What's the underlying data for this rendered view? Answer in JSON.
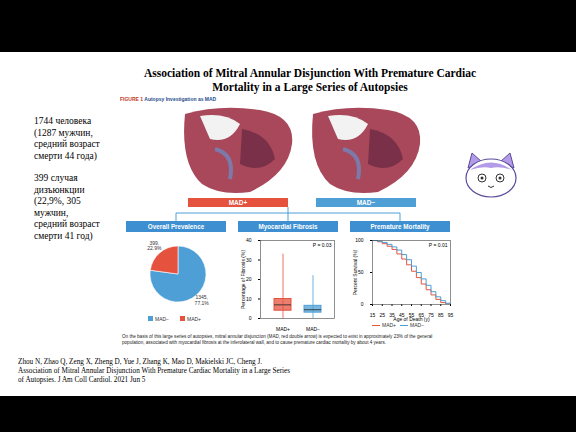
{
  "slide": {
    "title": "Association of Mitral Annular Disjunction With Premature Cardiac Mortality in a Large Series of Autopsies",
    "notes": [
      "1744 человека (1287 мужчин, средний возраст смерти 44 года)",
      "399 случая дизъюнкции (22,9%, 305 мужчин, средний возраст смерти 41 год)"
    ],
    "reference": [
      "Zhou N, Zhao Q, Zeng X, Zheng D, Yue J, Zhang K, Mao D, Makielski JC, Cheng J.",
      "Association of Mitral Annular Disjunction With Premature Cardiac Mortality in a Large Series",
      "of Autopsies. J Am Coll Cardiol. 2021 Jun 5"
    ]
  },
  "figure": {
    "label": "FIGURE 1",
    "title": "Autopsy Investigation as MAD",
    "groups": [
      {
        "name": "MAD+",
        "color": "#e5533f"
      },
      {
        "name": "MAD−",
        "color": "#4d9fd6"
      }
    ],
    "caption": "On the basis of this large series of autopsies, mitral annular disjunction (MAD, red double arrow) is expected to exist in approximately 23% of the general population, associated with myocardial fibrosis at the inferolateral wall, and to cause premature cardiac mortality by about 4 years."
  },
  "chart_data": [
    {
      "type": "pie",
      "title": "Overall Prevalence",
      "categories": [
        "MAD−",
        "MAD+"
      ],
      "values": [
        1345,
        399
      ],
      "value_labels": [
        "1345, 77.1%",
        "399, 22.9%"
      ],
      "colors": [
        "#4d9fd6",
        "#e5533f"
      ],
      "legend": "bottom"
    },
    {
      "type": "box",
      "title": "Myocardial Fibrosis",
      "categories": [
        "MAD+",
        "MAD−"
      ],
      "colors": [
        "#e5533f",
        "#4d9fd6"
      ],
      "min": [
        0,
        0
      ],
      "q1": [
        4,
        3
      ],
      "median": [
        7,
        4.5
      ],
      "q3": [
        10,
        6.5
      ],
      "max": [
        33,
        22
      ],
      "ylim": [
        0,
        40
      ],
      "yticks": [
        0,
        10,
        20,
        30,
        40
      ],
      "ylabel": "Percentage of Fibrosis (%)",
      "annotation": "P = 0.03"
    },
    {
      "type": "line",
      "title": "Premature Mortality",
      "x": [
        15,
        20,
        25,
        30,
        35,
        40,
        45,
        50,
        55,
        60,
        65,
        70,
        75,
        80,
        85,
        90,
        95
      ],
      "series": [
        {
          "name": "MAD+",
          "color": "#e5533f",
          "values": [
            100,
            98,
            95,
            91,
            86,
            79,
            71,
            62,
            52,
            42,
            32,
            23,
            15,
            8,
            3,
            1,
            0
          ]
        },
        {
          "name": "MAD−",
          "color": "#4d9fd6",
          "values": [
            100,
            99,
            97,
            94,
            90,
            85,
            78,
            70,
            60,
            50,
            40,
            30,
            20,
            12,
            6,
            2,
            0
          ]
        }
      ],
      "xlim": [
        15,
        95
      ],
      "xticks": [
        15,
        25,
        35,
        45,
        55,
        65,
        75,
        85,
        95
      ],
      "ylim": [
        0,
        100
      ],
      "yticks": [
        0,
        50,
        100
      ],
      "xlabel": "Age of Death (y)",
      "ylabel": "Percent Survival (%)",
      "annotation": "P = 0.01",
      "legend": "bottom"
    }
  ]
}
